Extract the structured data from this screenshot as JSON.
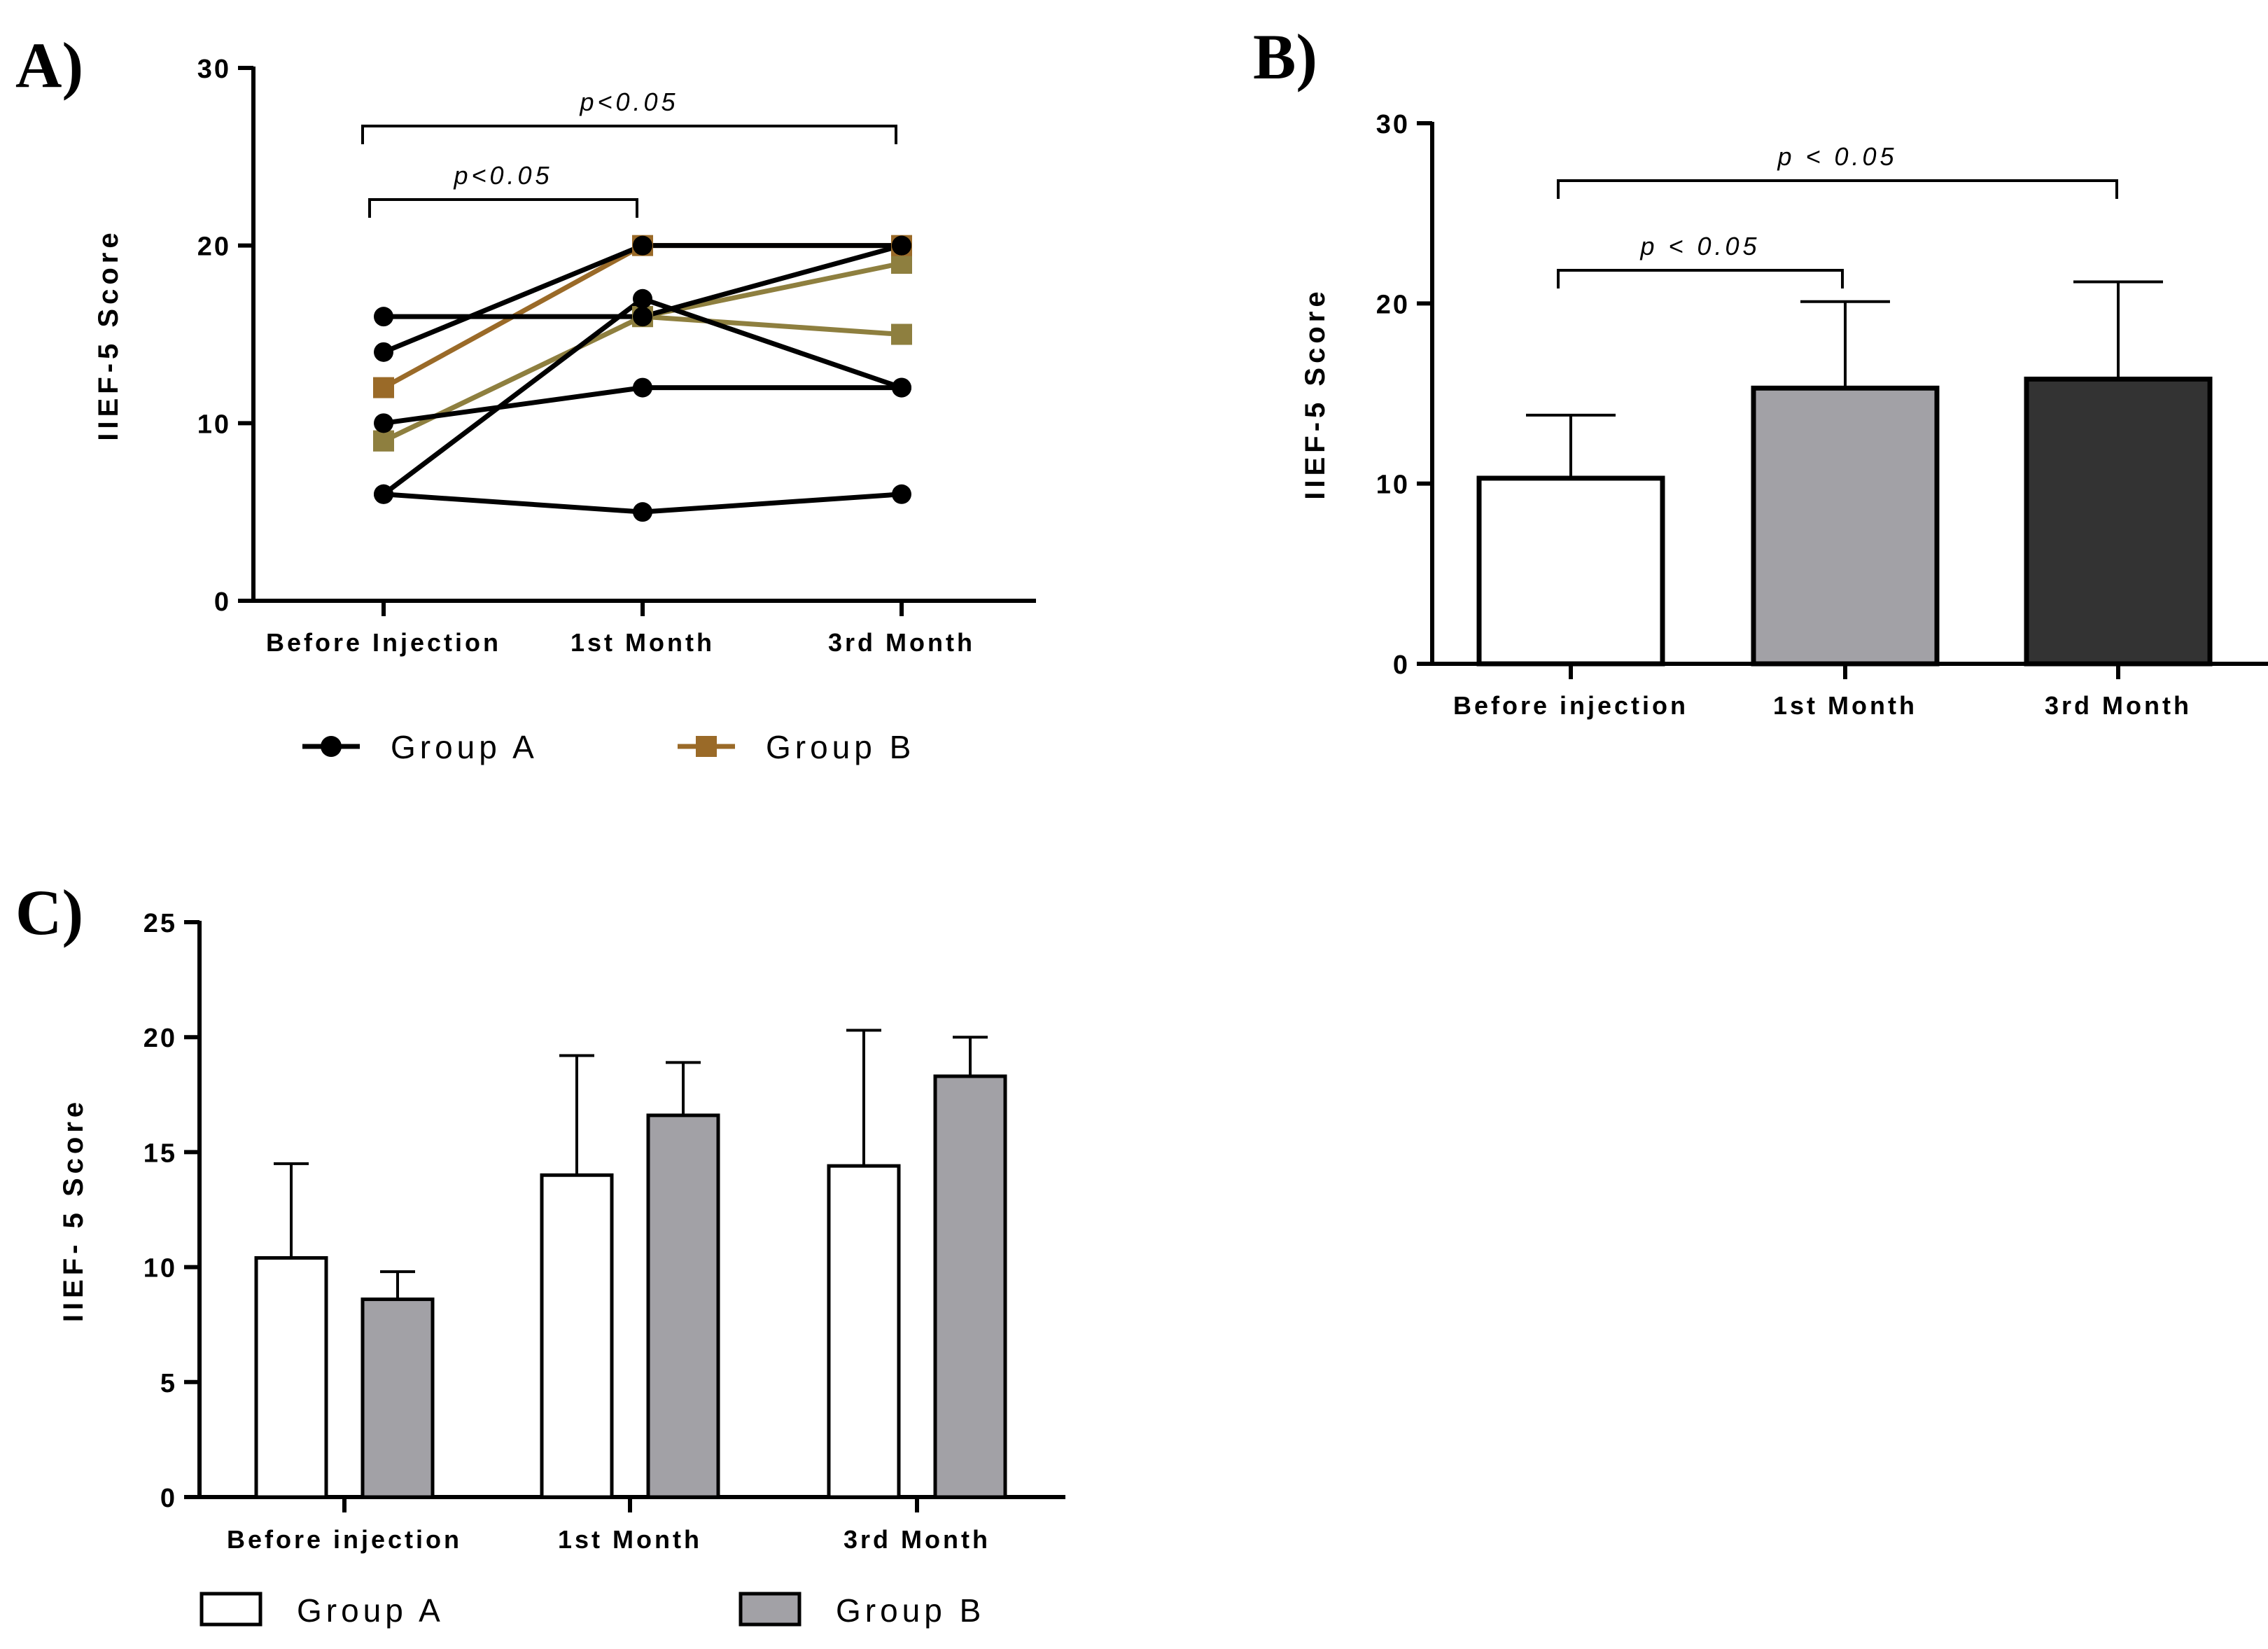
{
  "chart_data": [
    {
      "id": "A",
      "panel_label": "A)",
      "type": "line",
      "ylabel": "IIEF-5 Score",
      "ylim": [
        0,
        30
      ],
      "yticks": [
        0,
        10,
        20,
        30
      ],
      "categories": [
        "Before Injection",
        "1st Month",
        "3rd Month"
      ],
      "annotations": [
        {
          "text": "p<0.05",
          "from": 0,
          "to": 1
        },
        {
          "text": "p<0.05",
          "from": 0,
          "to": 2
        }
      ],
      "legend": [
        {
          "name": "Group A",
          "color": "#000000",
          "marker": "circle"
        },
        {
          "name": "Group B",
          "color": "#9a6a28",
          "marker": "square"
        }
      ],
      "series": [
        {
          "group": "Group B",
          "color": "#8e7f3f",
          "marker": "square",
          "values": [
            9,
            16,
            15
          ]
        },
        {
          "group": "Group B",
          "color": "#8e7f3f",
          "marker": "square",
          "values": [
            9,
            16,
            19
          ]
        },
        {
          "group": "Group B",
          "color": "#9a6a28",
          "marker": "square",
          "values": [
            12,
            20,
            20
          ]
        },
        {
          "group": "Group A",
          "color": "#000000",
          "marker": "circle",
          "values": [
            16,
            16,
            20
          ]
        },
        {
          "group": "Group A",
          "color": "#000000",
          "marker": "circle",
          "values": [
            14,
            20,
            20
          ]
        },
        {
          "group": "Group A",
          "color": "#000000",
          "marker": "circle",
          "values": [
            10,
            12,
            12
          ]
        },
        {
          "group": "Group A",
          "color": "#000000",
          "marker": "circle",
          "values": [
            6,
            17,
            12
          ]
        },
        {
          "group": "Group A",
          "color": "#000000",
          "marker": "circle",
          "values": [
            6,
            5,
            6
          ]
        }
      ]
    },
    {
      "id": "B",
      "panel_label": "B)",
      "type": "bar",
      "ylabel": "IIEF-5 Score",
      "ylim": [
        0,
        30
      ],
      "yticks": [
        0,
        10,
        20,
        30
      ],
      "categories": [
        "Before injection",
        "1st Month",
        "3rd Month"
      ],
      "values": [
        10.3,
        15.3,
        15.8
      ],
      "errors": [
        3.5,
        4.8,
        5.4
      ],
      "colors": [
        "#ffffff",
        "#a2a1a6",
        "#333333"
      ],
      "annotations": [
        {
          "text": "p < 0.05",
          "from": 0,
          "to": 1
        },
        {
          "text": "p < 0.05",
          "from": 0,
          "to": 2
        }
      ]
    },
    {
      "id": "C",
      "panel_label": "C)",
      "type": "bar",
      "ylabel": "IIEF- 5 Score",
      "ylim": [
        0,
        25
      ],
      "yticks": [
        0,
        5,
        10,
        15,
        20,
        25
      ],
      "categories": [
        "Before injection",
        "1st Month",
        "3rd Month"
      ],
      "series": [
        {
          "name": "Group A",
          "color": "#ffffff",
          "values": [
            10.4,
            14.0,
            14.4
          ],
          "errors": [
            4.1,
            5.2,
            5.9
          ]
        },
        {
          "name": "Group B",
          "color": "#a2a1a6",
          "values": [
            8.6,
            16.6,
            18.3
          ],
          "errors": [
            1.2,
            2.3,
            1.7
          ]
        }
      ]
    }
  ]
}
